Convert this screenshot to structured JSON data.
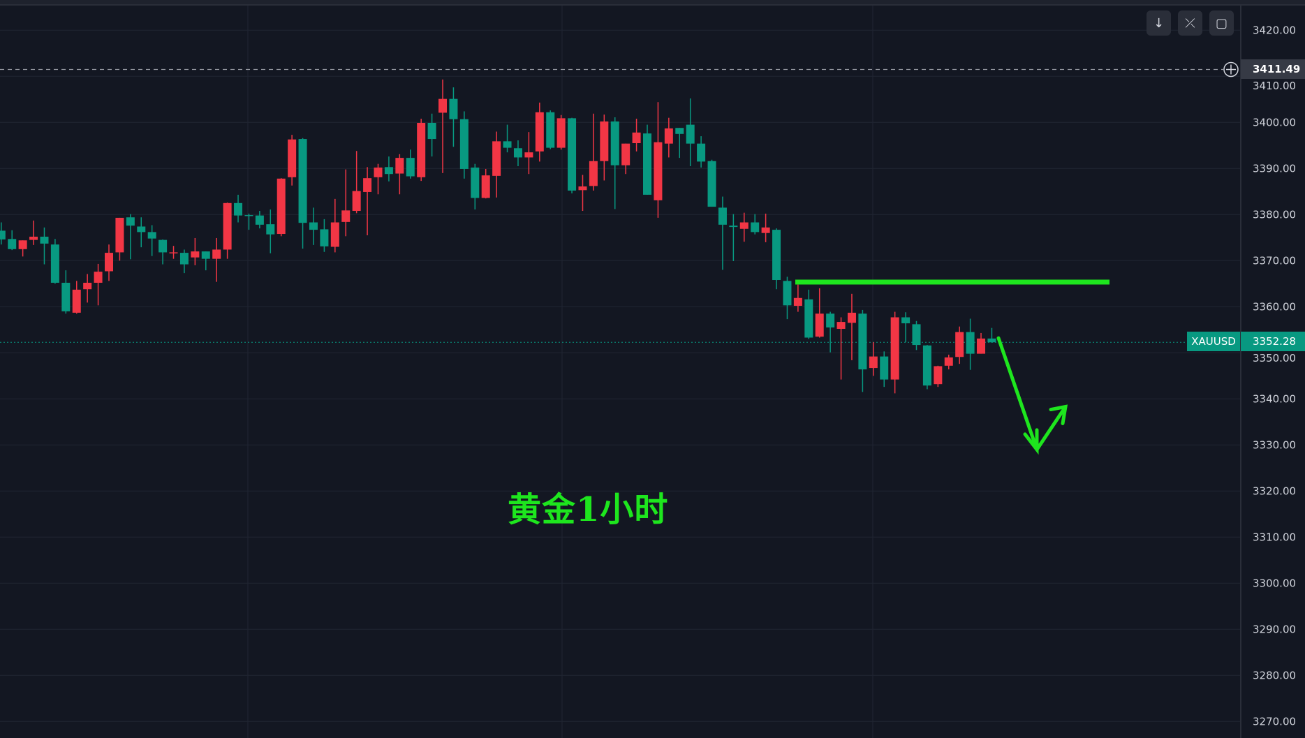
{
  "chart_data": {
    "type": "candlestick",
    "symbol": "XAUUSD",
    "annotation_text": "黄金1小时",
    "ylim": [
      3265,
      3425
    ],
    "y_ticks": [
      "3420.00",
      "3410.00",
      "3400.00",
      "3390.00",
      "3380.00",
      "3370.00",
      "3360.00",
      "3350.00",
      "3340.00",
      "3330.00",
      "3320.00",
      "3310.00",
      "3300.00",
      "3290.00",
      "3280.00",
      "3270.00"
    ],
    "grid": true,
    "current_price": "3352.28",
    "crosshair_price": "3411.49",
    "colors": {
      "up": "#f23645",
      "down": "#089981",
      "background": "#131722",
      "grid": "#1f2431",
      "drawing": "#1ee61e"
    },
    "horizontal_level": 3365.35,
    "projection_arrow_prices": [
      3353.2,
      3329.0,
      3338.3
    ],
    "candles_ohlc": [
      [
        3376.5,
        3378.3,
        3373.5,
        3374.6
      ],
      [
        3374.7,
        3376.6,
        3372.3,
        3372.5
      ],
      [
        3372.5,
        3374.4,
        3370.9,
        3374.4
      ],
      [
        3374.5,
        3378.7,
        3373.4,
        3375.2
      ],
      [
        3375.2,
        3377.2,
        3369.2,
        3373.7
      ],
      [
        3373.5,
        3374.7,
        3365.0,
        3365.2
      ],
      [
        3365.2,
        3367.9,
        3358.5,
        3359.0
      ],
      [
        3358.7,
        3365.6,
        3358.5,
        3363.7
      ],
      [
        3363.8,
        3367.1,
        3360.9,
        3365.2
      ],
      [
        3365.2,
        3369.3,
        3360.3,
        3367.6
      ],
      [
        3367.7,
        3373.5,
        3365.6,
        3371.7
      ],
      [
        3371.8,
        3379.3,
        3370.0,
        3379.3
      ],
      [
        3379.4,
        3380.1,
        3370.3,
        3377.6
      ],
      [
        3377.4,
        3379.4,
        3372.9,
        3376.2
      ],
      [
        3376.2,
        3377.7,
        3371.0,
        3374.8
      ],
      [
        3374.5,
        3374.6,
        3369.2,
        3371.8
      ],
      [
        3371.6,
        3373.2,
        3370.4,
        3371.8
      ],
      [
        3371.7,
        3372.4,
        3367.3,
        3369.2
      ],
      [
        3370.7,
        3374.9,
        3369.0,
        3372.0
      ],
      [
        3372.0,
        3372.0,
        3367.9,
        3370.4
      ],
      [
        3370.4,
        3374.9,
        3365.4,
        3372.4
      ],
      [
        3372.4,
        3382.6,
        3370.4,
        3382.5
      ],
      [
        3382.5,
        3384.3,
        3378.3,
        3379.8
      ],
      [
        3379.9,
        3380.2,
        3376.7,
        3379.7
      ],
      [
        3379.8,
        3380.8,
        3377.0,
        3377.8
      ],
      [
        3377.9,
        3381.1,
        3371.6,
        3375.7
      ],
      [
        3375.8,
        3387.9,
        3375.3,
        3387.8
      ],
      [
        3388.1,
        3397.3,
        3386.3,
        3396.3
      ],
      [
        3396.4,
        3396.6,
        3372.6,
        3378.2
      ],
      [
        3378.3,
        3381.5,
        3373.4,
        3376.7
      ],
      [
        3376.8,
        3379.0,
        3371.9,
        3373.1
      ],
      [
        3373.0,
        3383.4,
        3371.8,
        3378.3
      ],
      [
        3378.4,
        3389.8,
        3375.3,
        3380.9
      ],
      [
        3380.8,
        3393.8,
        3380.3,
        3385.1
      ],
      [
        3384.9,
        3390.3,
        3375.5,
        3387.9
      ],
      [
        3388.1,
        3391.0,
        3384.4,
        3390.2
      ],
      [
        3390.3,
        3392.6,
        3387.2,
        3388.8
      ],
      [
        3388.9,
        3393.1,
        3384.4,
        3392.3
      ],
      [
        3392.3,
        3394.1,
        3387.8,
        3388.3
      ],
      [
        3388.1,
        3400.8,
        3387.3,
        3399.9
      ],
      [
        3399.9,
        3401.9,
        3392.6,
        3396.4
      ],
      [
        3402.1,
        3409.3,
        3389.0,
        3405.1
      ],
      [
        3405.1,
        3407.6,
        3394.7,
        3400.7
      ],
      [
        3400.7,
        3402.4,
        3387.8,
        3389.9
      ],
      [
        3390.2,
        3391.0,
        3381.1,
        3383.6
      ],
      [
        3383.6,
        3389.9,
        3383.5,
        3388.5
      ],
      [
        3388.4,
        3398.0,
        3383.7,
        3395.9
      ],
      [
        3395.9,
        3399.5,
        3393.5,
        3394.5
      ],
      [
        3394.4,
        3396.1,
        3390.5,
        3392.4
      ],
      [
        3392.4,
        3397.9,
        3388.8,
        3393.5
      ],
      [
        3393.7,
        3404.3,
        3391.5,
        3402.2
      ],
      [
        3402.2,
        3402.6,
        3394.2,
        3394.5
      ],
      [
        3394.5,
        3401.6,
        3394.1,
        3400.9
      ],
      [
        3400.9,
        3401.0,
        3384.6,
        3385.2
      ],
      [
        3385.3,
        3388.6,
        3380.8,
        3386.1
      ],
      [
        3386.2,
        3401.9,
        3385.2,
        3391.6
      ],
      [
        3391.6,
        3401.7,
        3387.4,
        3400.2
      ],
      [
        3400.2,
        3401.1,
        3381.2,
        3390.7
      ],
      [
        3390.7,
        3395.4,
        3388.8,
        3395.4
      ],
      [
        3395.5,
        3400.8,
        3393.7,
        3397.8
      ],
      [
        3397.6,
        3399.5,
        3384.3,
        3384.3
      ],
      [
        3383.1,
        3404.4,
        3379.3,
        3395.7
      ],
      [
        3395.4,
        3401.0,
        3392.4,
        3398.7
      ],
      [
        3398.8,
        3398.8,
        3392.3,
        3397.5
      ],
      [
        3399.5,
        3405.2,
        3390.5,
        3395.4
      ],
      [
        3395.4,
        3397.0,
        3390.2,
        3391.5
      ],
      [
        3391.6,
        3391.9,
        3381.7,
        3381.7
      ],
      [
        3381.5,
        3383.9,
        3368.0,
        3377.8
      ],
      [
        3377.6,
        3380.1,
        3369.9,
        3377.3
      ],
      [
        3376.9,
        3380.4,
        3374.1,
        3378.3
      ],
      [
        3378.3,
        3380.1,
        3375.7,
        3376.2
      ],
      [
        3376.0,
        3380.2,
        3374.0,
        3377.2
      ],
      [
        3376.7,
        3377.0,
        3363.8,
        3365.8
      ],
      [
        3365.6,
        3366.5,
        3357.3,
        3360.3
      ],
      [
        3360.2,
        3364.8,
        3358.9,
        3361.9
      ],
      [
        3361.6,
        3363.7,
        3353.0,
        3353.3
      ],
      [
        3353.5,
        3364.0,
        3353.3,
        3358.5
      ],
      [
        3358.5,
        3358.9,
        3350.1,
        3355.5
      ],
      [
        3355.2,
        3357.7,
        3344.2,
        3356.7
      ],
      [
        3356.5,
        3362.8,
        3348.4,
        3358.7
      ],
      [
        3358.5,
        3359.3,
        3341.5,
        3346.4
      ],
      [
        3346.7,
        3352.3,
        3345.0,
        3349.2
      ],
      [
        3349.2,
        3350.3,
        3342.6,
        3344.2
      ],
      [
        3344.2,
        3358.9,
        3341.2,
        3357.7
      ],
      [
        3357.7,
        3358.8,
        3352.3,
        3356.4
      ],
      [
        3356.2,
        3356.9,
        3350.6,
        3351.7
      ],
      [
        3351.6,
        3351.7,
        3342.1,
        3342.9
      ],
      [
        3343.2,
        3347.2,
        3342.6,
        3347.1
      ],
      [
        3347.2,
        3349.6,
        3346.4,
        3349.0
      ],
      [
        3349.1,
        3355.7,
        3347.6,
        3354.5
      ],
      [
        3354.5,
        3357.4,
        3346.3,
        3349.8
      ],
      [
        3349.8,
        3354.3,
        3349.8,
        3353.1
      ],
      [
        3353.1,
        3355.4,
        3352.2,
        3352.28
      ]
    ]
  },
  "toolbar": {
    "buttons": [
      {
        "icon": "arrow-down-icon",
        "glyph": "↓"
      },
      {
        "icon": "collapse-icon",
        "glyph": "⤫"
      },
      {
        "icon": "fullscreen-icon",
        "glyph": "▢"
      }
    ]
  }
}
